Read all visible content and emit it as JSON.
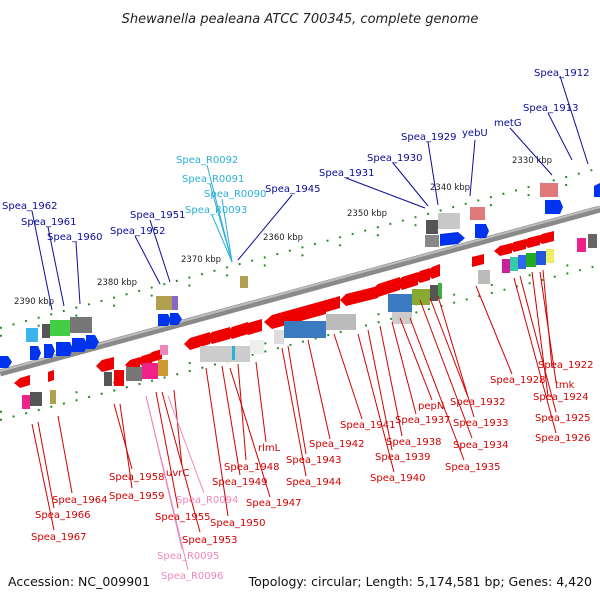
{
  "title": "Shewanella pealeana ATCC 700345, complete genome",
  "footer": {
    "accession": "Accession: NC_009901",
    "summary": "Topology: circular; Length: 5,174,581 bp; Genes: 4,420"
  },
  "colors": {
    "forward_gene": "#0033ee",
    "reverse_gene": "#ee0000",
    "label_blue": "#0c0c9c",
    "label_red": "#d40000",
    "label_rna": "#2ab0d8",
    "label_pink": "#ee88bb",
    "backbone": "#777777",
    "tick": "#2a8a2a"
  },
  "kbp_labels": [
    "2330 kbp",
    "2340 kbp",
    "2350 kbp",
    "2360 kbp",
    "2370 kbp",
    "2380 kbp",
    "2390 kbp"
  ],
  "top_labels": [
    "Spea_1912",
    "Spea_1913",
    "metG",
    "yebU",
    "Spea_1929",
    "Spea_1930",
    "Spea_1931",
    "Spea_1945",
    "Spea_R0092",
    "Spea_R0091",
    "Spea_R0090",
    "Spea_R0093",
    "Spea_1951",
    "Spea_1952",
    "Spea_1962",
    "Spea_1961",
    "Spea_1960"
  ],
  "bottom_labels": [
    "Spea_1922",
    "tmk",
    "Spea_1928",
    "Spea_1924",
    "Spea_1925",
    "Spea_1926",
    "Spea_1932",
    "Spea_1933",
    "Spea_1934",
    "Spea_1935",
    "pepN",
    "Spea_1937",
    "Spea_1938",
    "Spea_1939",
    "Spea_1940",
    "Spea_1941",
    "Spea_1942",
    "Spea_1943",
    "Spea_1944",
    "rlmL",
    "Spea_1948",
    "Spea_1949",
    "Spea_1947",
    "uvrC",
    "Spea_1950",
    "Spea_1958",
    "Spea_1959",
    "Spea_R0094",
    "Spea_1955",
    "Spea_1953",
    "Spea_1964",
    "Spea_1966",
    "Spea_1967",
    "Spea_R0095",
    "Spea_R0096"
  ]
}
